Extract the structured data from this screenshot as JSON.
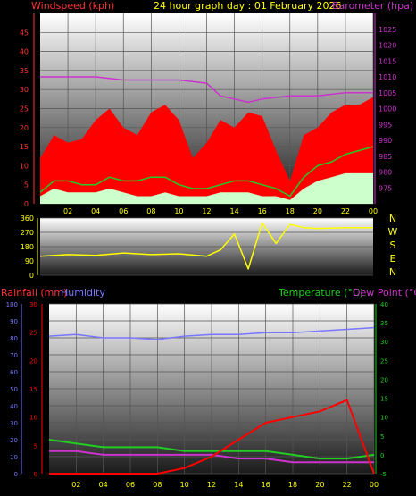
{
  "header": {
    "left_title": "Windspeed (kph)",
    "center_title": "24 hour graph day : 01 February 2026",
    "right_title": "Barometer (hpa)"
  },
  "colors": {
    "windspeed": "#ff0000",
    "gust_fill": "#ff0000",
    "avg_speed": "#22cc22",
    "light_fill": "#ccffcc",
    "barometer": "#cc33cc",
    "wind_dir": "#ffff00",
    "rain": "#ff0000",
    "humidity": "#7777ff",
    "temperature": "#22cc22",
    "dew_point": "#cc33cc",
    "grid": "#555555",
    "axis_wind": "#ff3333",
    "axis_baro": "#cc33cc"
  },
  "x_ticks": [
    "02",
    "04",
    "06",
    "08",
    "10",
    "12",
    "14",
    "16",
    "18",
    "20",
    "22",
    "00"
  ],
  "chart_data": [
    {
      "type": "area",
      "name_axis_left": "Windspeed (kph)",
      "name_axis_right": "Barometer (hpa)",
      "left_ticks": [
        "0",
        "5",
        "10",
        "15",
        "20",
        "25",
        "30",
        "35",
        "40",
        "45"
      ],
      "right_ticks": [
        "975",
        "980",
        "985",
        "990",
        "995",
        "1000",
        "1005",
        "1010",
        "1015",
        "1020",
        "1025"
      ],
      "ylim_left": [
        0,
        50
      ],
      "ylim_right": [
        970,
        1030
      ],
      "grid": true,
      "gust_x": [
        0,
        1,
        2,
        3,
        4,
        5,
        6,
        7,
        8,
        9,
        10,
        11,
        12,
        13,
        14,
        15,
        16,
        17,
        18,
        19,
        20,
        21,
        22,
        23,
        24
      ],
      "gust_values": [
        12,
        18,
        16,
        17,
        22,
        25,
        20,
        18,
        24,
        26,
        22,
        12,
        16,
        22,
        20,
        24,
        23,
        14,
        6,
        18,
        20,
        24,
        26,
        26,
        28
      ],
      "avg_values": [
        3,
        6,
        6,
        5,
        5,
        7,
        6,
        6,
        7,
        7,
        5,
        4,
        4,
        5,
        6,
        6,
        5,
        4,
        2,
        7,
        10,
        11,
        13,
        14,
        15
      ],
      "light_values": [
        2,
        4,
        3,
        3,
        3,
        4,
        3,
        2,
        2,
        3,
        2,
        2,
        2,
        3,
        3,
        3,
        2,
        2,
        1,
        4,
        6,
        7,
        8,
        8,
        8
      ],
      "baro_x": [
        0,
        2,
        4,
        6,
        8,
        10,
        12,
        13,
        14,
        15,
        16,
        18,
        20,
        22,
        24
      ],
      "baro_values": [
        1010,
        1010,
        1010,
        1009,
        1009,
        1009,
        1008,
        1004,
        1003,
        1002,
        1003,
        1004,
        1004,
        1005,
        1005
      ]
    },
    {
      "type": "line",
      "name_axis_left": "Wind direction",
      "left_ticks": [
        "0",
        "90",
        "180",
        "270",
        "360"
      ],
      "direction_labels": [
        "N",
        "W",
        "S",
        "E",
        "N"
      ],
      "ylim": [
        0,
        360
      ],
      "x": [
        0,
        2,
        4,
        6,
        8,
        10,
        12,
        13,
        14,
        15,
        16,
        17,
        18,
        19,
        20,
        22,
        24
      ],
      "values": [
        120,
        130,
        125,
        140,
        130,
        135,
        120,
        160,
        260,
        40,
        330,
        200,
        320,
        300,
        295,
        300,
        300
      ]
    },
    {
      "type": "line",
      "left_ticks": [
        "0",
        "5",
        "10",
        "15",
        "20",
        "25",
        "30"
      ],
      "humidity_ticks": [
        "0",
        "10",
        "20",
        "30",
        "40",
        "50",
        "60",
        "70",
        "80",
        "90",
        "100"
      ],
      "right_ticks": [
        "-5",
        "0",
        "5",
        "10",
        "15",
        "20",
        "25",
        "30",
        "35",
        "40"
      ],
      "ylim_rain": [
        0,
        30
      ],
      "ylim_humidity": [
        0,
        100
      ],
      "ylim_temp": [
        -5,
        40
      ],
      "legend_left": [
        "Rainfall (mm)",
        "Humidity"
      ],
      "legend_right": [
        "Temperature (°C)",
        "Dew Point (°C)"
      ],
      "x": [
        0,
        2,
        4,
        6,
        8,
        10,
        12,
        14,
        16,
        18,
        20,
        22,
        24
      ],
      "rain_values": [
        0,
        0,
        0,
        0,
        0,
        1,
        3,
        6,
        9,
        10,
        11,
        13,
        0
      ],
      "humidity_values": [
        81,
        82,
        80,
        80,
        79,
        81,
        82,
        82,
        83,
        83,
        84,
        85,
        86
      ],
      "temperature_values": [
        4,
        3,
        2,
        2,
        2,
        1,
        1,
        1,
        1,
        0,
        -1,
        -1,
        0
      ],
      "dewpoint_values": [
        1,
        1,
        0,
        0,
        0,
        0,
        0,
        -1,
        -1,
        -2,
        -2,
        -2,
        -2
      ]
    }
  ]
}
